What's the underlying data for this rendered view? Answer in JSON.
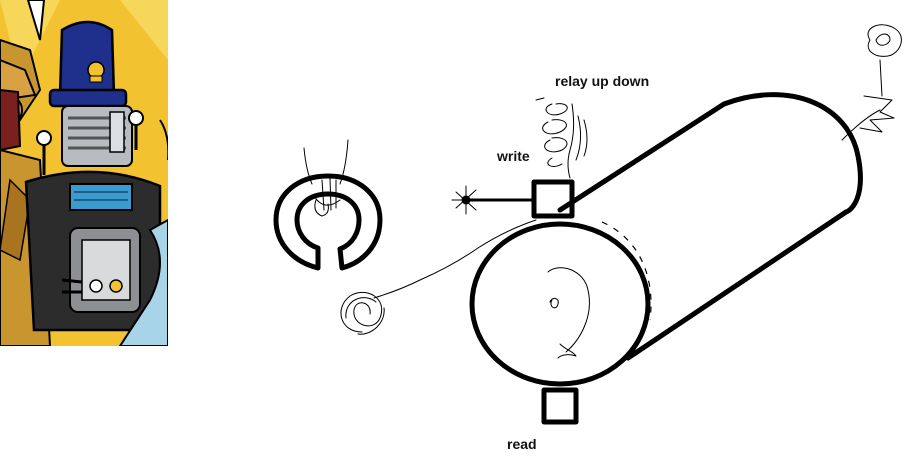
{
  "labels": {
    "relay": "relay up down",
    "write": "write",
    "read": "read"
  },
  "icons": {
    "character_art": "robot-policeman-cartoon-illustration",
    "drum": "magnetic-drum",
    "ring": "c-shaped-ring-core"
  },
  "colors": {
    "ink": "#000000",
    "background": "#ffffff",
    "cartoon_sky": "#f2c230",
    "cartoon_hat": "#1e2f8c",
    "cartoon_metal": "#8d8f93",
    "cartoon_coat": "#c9952f"
  }
}
